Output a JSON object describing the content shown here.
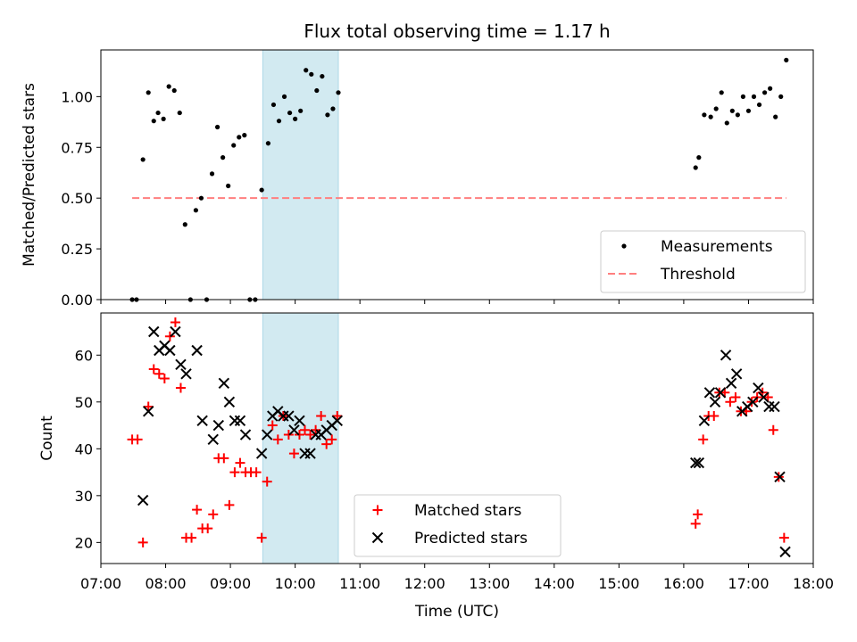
{
  "figure": {
    "title": "Flux total observing time = 1.17 h",
    "xlabel": "Time (UTC)"
  },
  "colors": {
    "measurements": "#000000",
    "threshold": "#ff7f7f",
    "matched": "#ff0000",
    "predicted": "#000000",
    "shade": "#add8e6"
  },
  "chart_data": [
    {
      "type": "scatter",
      "panel": "top",
      "ylabel": "Matched/Predicted stars",
      "xlim": [
        "07:00",
        "18:00"
      ],
      "ylim": [
        0,
        1.23
      ],
      "yticks": [
        0.0,
        0.25,
        0.5,
        0.75,
        1.0
      ],
      "ytick_labels": [
        "0.00",
        "0.25",
        "0.50",
        "0.75",
        "1.00"
      ],
      "grid": false,
      "legend": "lower-right",
      "shaded_span": [
        "09:30",
        "10:40"
      ],
      "series": [
        {
          "name": "Measurements",
          "marker": "dot",
          "points": [
            [
              "07:29",
              0.0
            ],
            [
              "07:33",
              0.0
            ],
            [
              "07:39",
              0.69
            ],
            [
              "07:44",
              1.02
            ],
            [
              "07:49",
              0.88
            ],
            [
              "07:53",
              0.92
            ],
            [
              "07:58",
              0.89
            ],
            [
              "08:03",
              1.05
            ],
            [
              "08:08",
              1.03
            ],
            [
              "08:13",
              0.92
            ],
            [
              "08:18",
              0.37
            ],
            [
              "08:23",
              0.0
            ],
            [
              "08:28",
              0.44
            ],
            [
              "08:33",
              0.5
            ],
            [
              "08:38",
              0.0
            ],
            [
              "08:43",
              0.62
            ],
            [
              "08:48",
              0.85
            ],
            [
              "08:53",
              0.7
            ],
            [
              "08:58",
              0.56
            ],
            [
              "09:03",
              0.76
            ],
            [
              "09:08",
              0.8
            ],
            [
              "09:13",
              0.81
            ],
            [
              "09:18",
              0.0
            ],
            [
              "09:23",
              0.0
            ],
            [
              "09:29",
              0.54
            ],
            [
              "09:35",
              0.77
            ],
            [
              "09:40",
              0.96
            ],
            [
              "09:45",
              0.88
            ],
            [
              "09:50",
              1.0
            ],
            [
              "09:55",
              0.92
            ],
            [
              "10:00",
              0.89
            ],
            [
              "10:05",
              0.93
            ],
            [
              "10:10",
              1.13
            ],
            [
              "10:15",
              1.11
            ],
            [
              "10:20",
              1.03
            ],
            [
              "10:25",
              1.1
            ],
            [
              "10:30",
              0.91
            ],
            [
              "10:35",
              0.94
            ],
            [
              "10:40",
              1.02
            ],
            [
              "16:11",
              0.65
            ],
            [
              "16:14",
              0.7
            ],
            [
              "16:19",
              0.91
            ],
            [
              "16:25",
              0.9
            ],
            [
              "16:30",
              0.94
            ],
            [
              "16:35",
              1.02
            ],
            [
              "16:40",
              0.87
            ],
            [
              "16:45",
              0.93
            ],
            [
              "16:50",
              0.91
            ],
            [
              "16:55",
              1.0
            ],
            [
              "17:00",
              0.93
            ],
            [
              "17:05",
              1.0
            ],
            [
              "17:10",
              0.96
            ],
            [
              "17:15",
              1.02
            ],
            [
              "17:20",
              1.04
            ],
            [
              "17:25",
              0.9
            ],
            [
              "17:30",
              1.0
            ],
            [
              "17:35",
              1.18
            ]
          ]
        },
        {
          "name": "Threshold",
          "marker": "dashed-line",
          "points": [
            [
              "07:29",
              0.5
            ],
            [
              "17:35",
              0.5
            ]
          ]
        }
      ]
    },
    {
      "type": "scatter",
      "panel": "bottom",
      "ylabel": "Count",
      "xlim": [
        "07:00",
        "18:00"
      ],
      "ylim": [
        15.5,
        69
      ],
      "xticks": [
        "07:00",
        "08:00",
        "09:00",
        "10:00",
        "11:00",
        "12:00",
        "13:00",
        "14:00",
        "15:00",
        "16:00",
        "17:00",
        "18:00"
      ],
      "yticks": [
        20,
        30,
        40,
        50,
        60
      ],
      "grid": false,
      "legend": "lower-center",
      "shaded_span": [
        "09:30",
        "10:40"
      ],
      "series": [
        {
          "name": "Matched stars",
          "marker": "plus",
          "points": [
            [
              "07:29",
              42
            ],
            [
              "07:34",
              42
            ],
            [
              "07:39",
              20
            ],
            [
              "07:44",
              49
            ],
            [
              "07:49",
              57
            ],
            [
              "07:54",
              56
            ],
            [
              "07:59",
              55
            ],
            [
              "08:04",
              64
            ],
            [
              "08:09",
              67
            ],
            [
              "08:14",
              53
            ],
            [
              "08:19",
              21
            ],
            [
              "08:24",
              21
            ],
            [
              "08:29",
              27
            ],
            [
              "08:34",
              23
            ],
            [
              "08:39",
              23
            ],
            [
              "08:44",
              26
            ],
            [
              "08:49",
              38
            ],
            [
              "08:54",
              38
            ],
            [
              "08:59",
              28
            ],
            [
              "09:04",
              35
            ],
            [
              "09:09",
              37
            ],
            [
              "09:14",
              35
            ],
            [
              "09:19",
              35
            ],
            [
              "09:24",
              35
            ],
            [
              "09:29",
              21
            ],
            [
              "09:34",
              33
            ],
            [
              "09:39",
              45
            ],
            [
              "09:44",
              42
            ],
            [
              "09:49",
              47
            ],
            [
              "09:54",
              43
            ],
            [
              "09:59",
              39
            ],
            [
              "10:04",
              43
            ],
            [
              "10:09",
              44
            ],
            [
              "10:14",
              43
            ],
            [
              "10:19",
              44
            ],
            [
              "10:24",
              47
            ],
            [
              "10:29",
              41
            ],
            [
              "10:34",
              42
            ],
            [
              "10:39",
              47
            ],
            [
              "16:11",
              24
            ],
            [
              "16:13",
              26
            ],
            [
              "16:18",
              42
            ],
            [
              "16:23",
              47
            ],
            [
              "16:28",
              47
            ],
            [
              "16:33",
              52
            ],
            [
              "16:38",
              52
            ],
            [
              "16:43",
              50
            ],
            [
              "16:48",
              51
            ],
            [
              "16:53",
              48
            ],
            [
              "16:58",
              48
            ],
            [
              "17:03",
              50
            ],
            [
              "17:08",
              51
            ],
            [
              "17:13",
              52
            ],
            [
              "17:18",
              51
            ],
            [
              "17:23",
              44
            ],
            [
              "17:28",
              34
            ],
            [
              "17:33",
              21
            ]
          ]
        },
        {
          "name": "Predicted stars",
          "marker": "x",
          "points": [
            [
              "07:39",
              29
            ],
            [
              "07:44",
              48
            ],
            [
              "07:49",
              65
            ],
            [
              "07:54",
              61
            ],
            [
              "07:59",
              62
            ],
            [
              "08:04",
              61
            ],
            [
              "08:09",
              65
            ],
            [
              "08:14",
              58
            ],
            [
              "08:19",
              56
            ],
            [
              "08:29",
              61
            ],
            [
              "08:34",
              46
            ],
            [
              "08:44",
              42
            ],
            [
              "08:49",
              45
            ],
            [
              "08:54",
              54
            ],
            [
              "08:59",
              50
            ],
            [
              "09:04",
              46
            ],
            [
              "09:09",
              46
            ],
            [
              "09:14",
              43
            ],
            [
              "09:29",
              39
            ],
            [
              "09:34",
              43
            ],
            [
              "09:39",
              47
            ],
            [
              "09:44",
              48
            ],
            [
              "09:49",
              47
            ],
            [
              "09:54",
              47
            ],
            [
              "09:59",
              44
            ],
            [
              "10:04",
              46
            ],
            [
              "10:09",
              39
            ],
            [
              "10:14",
              39
            ],
            [
              "10:19",
              43
            ],
            [
              "10:24",
              43
            ],
            [
              "10:29",
              44
            ],
            [
              "10:34",
              45
            ],
            [
              "10:39",
              46
            ],
            [
              "16:11",
              37
            ],
            [
              "16:14",
              37
            ],
            [
              "16:19",
              46
            ],
            [
              "16:24",
              52
            ],
            [
              "16:29",
              50
            ],
            [
              "16:34",
              52
            ],
            [
              "16:39",
              60
            ],
            [
              "16:44",
              54
            ],
            [
              "16:49",
              56
            ],
            [
              "16:54",
              48
            ],
            [
              "16:59",
              49
            ],
            [
              "17:04",
              50
            ],
            [
              "17:09",
              53
            ],
            [
              "17:14",
              51
            ],
            [
              "17:19",
              49
            ],
            [
              "17:24",
              49
            ],
            [
              "17:29",
              34
            ],
            [
              "17:34",
              18
            ]
          ]
        }
      ]
    }
  ]
}
